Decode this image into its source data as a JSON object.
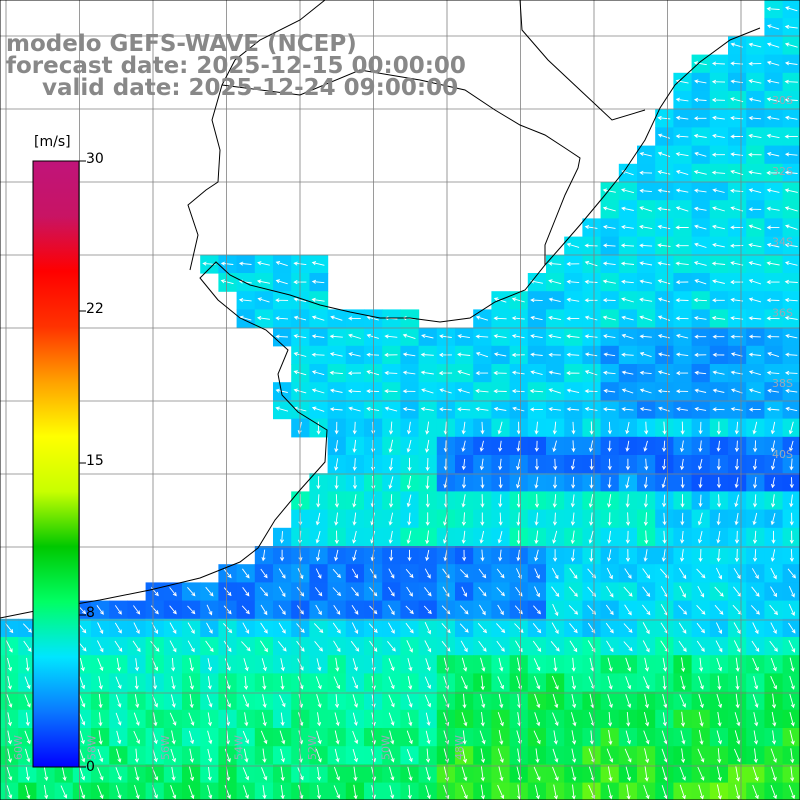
{
  "title": {
    "line1": "modelo GEFS-WAVE (NCEP)",
    "line2": "forecast date: 2025-12-15 00:00:00",
    "line3": "valid date: 2025-12-24 09:00:00"
  },
  "colorbar": {
    "unit": "[m/s]",
    "min": 0,
    "max": 30,
    "tick_labels": [
      "30",
      "22",
      "15",
      "8",
      "0"
    ],
    "colors": [
      "#0000ff",
      "#0a78ff",
      "#00e6ff",
      "#00ff64",
      "#00c800",
      "#c8ff00",
      "#ffff00",
      "#ffa000",
      "#ff3200",
      "#ff0000",
      "#c81464",
      "#c0147a"
    ]
  },
  "lat_labels": [
    "30S",
    "32S",
    "34S",
    "36S",
    "38S",
    "40S"
  ],
  "lon_labels": [
    "60W",
    "58W",
    "56W",
    "54W",
    "52W",
    "50W",
    "48W"
  ],
  "legend": {
    "land_color": "#ffffff",
    "grid_color": "#808080",
    "coast_color": "#000000",
    "arrow_color": "#ffffff"
  }
}
